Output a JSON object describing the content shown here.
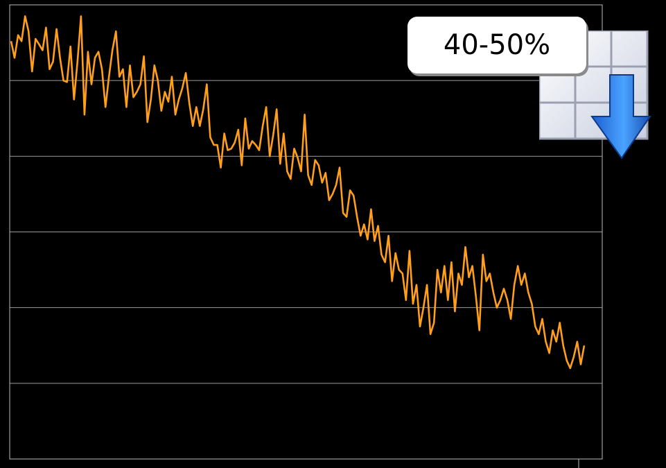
{
  "callout": {
    "text": "40-50%"
  },
  "icon": {
    "name": "table-download-arrow-icon"
  },
  "colors": {
    "line": "#ff9f1a",
    "grid": "#9a9a9a",
    "background": "#000000",
    "frame": "#bdbdbd"
  },
  "chart_data": {
    "type": "line",
    "title": "",
    "xlabel": "",
    "ylabel": "",
    "grid": true,
    "ylim": [
      0,
      6
    ],
    "series": [
      {
        "values": [
          5.52,
          5.3,
          5.6,
          5.52,
          5.85,
          5.65,
          5.12,
          5.55,
          5.48,
          5.4,
          5.7,
          5.15,
          5.25,
          5.68,
          5.3,
          5.0,
          4.98,
          5.45,
          4.75,
          5.25,
          5.85,
          4.55,
          5.38,
          4.95,
          5.3,
          5.38,
          5.15,
          4.65,
          5.05,
          5.4,
          5.65,
          5.05,
          5.15,
          4.65,
          5.2,
          4.78,
          4.85,
          4.95,
          5.32,
          4.45,
          4.75,
          5.2,
          5.0,
          4.6,
          4.85,
          4.72,
          5.05,
          4.55,
          4.75,
          4.9,
          5.1,
          4.7,
          4.4,
          4.65,
          4.4,
          4.62,
          4.95,
          4.25,
          4.15,
          4.15,
          3.85,
          4.3,
          4.08,
          4.1,
          4.18,
          4.35,
          3.88,
          4.5,
          4.1,
          4.2,
          4.15,
          4.08,
          4.4,
          4.65,
          4.0,
          4.28,
          4.62,
          3.9,
          4.3,
          3.8,
          3.7,
          4.1,
          3.98,
          3.8,
          4.55,
          3.75,
          3.62,
          3.95,
          3.88,
          3.65,
          3.78,
          3.42,
          3.5,
          3.62,
          3.85,
          3.25,
          3.2,
          3.55,
          3.48,
          3.2,
          2.95,
          3.1,
          2.9,
          3.3,
          2.88,
          3.08,
          2.7,
          2.6,
          2.95,
          2.35,
          2.72,
          2.5,
          2.45,
          2.1,
          2.75,
          2.05,
          2.3,
          1.75,
          2.0,
          2.3,
          1.65,
          1.8,
          2.5,
          2.2,
          2.55,
          2.1,
          2.6,
          1.95,
          2.45,
          2.3,
          2.8,
          2.4,
          2.55,
          2.15,
          1.7,
          2.7,
          2.35,
          2.45,
          2.2,
          2.0,
          2.1,
          2.25,
          2.1,
          1.85,
          2.3,
          2.55,
          2.3,
          2.45,
          2.2,
          2.05,
          1.75,
          1.65,
          1.85,
          1.55,
          1.4,
          1.7,
          1.55,
          1.8,
          1.5,
          1.3,
          1.2,
          1.35,
          1.55,
          1.25,
          1.5
        ]
      }
    ]
  }
}
